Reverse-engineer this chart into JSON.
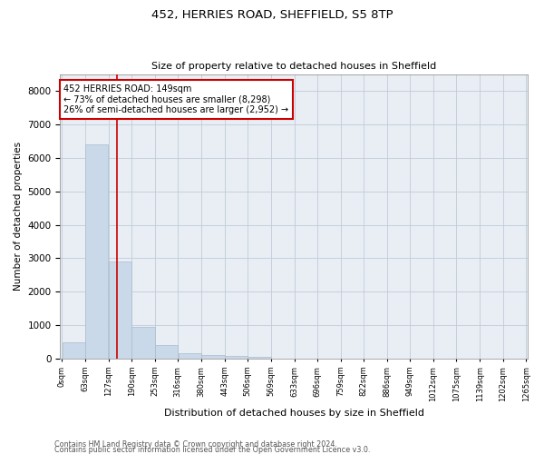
{
  "title1": "452, HERRIES ROAD, SHEFFIELD, S5 8TP",
  "title2": "Size of property relative to detached houses in Sheffield",
  "xlabel": "Distribution of detached houses by size in Sheffield",
  "ylabel": "Number of detached properties",
  "bar_values": [
    500,
    6400,
    2900,
    950,
    400,
    150,
    120,
    80,
    60,
    10,
    5,
    3,
    2,
    1,
    1,
    0,
    0,
    0,
    0,
    0
  ],
  "bin_edges": [
    0,
    63,
    127,
    190,
    253,
    316,
    380,
    443,
    506,
    569,
    633,
    696,
    759,
    822,
    886,
    949,
    1012,
    1075,
    1139,
    1202,
    1265
  ],
  "bar_color": "#c9d9e9",
  "bar_edgecolor": "#aabccc",
  "vline_x": 149,
  "vline_color": "#cc0000",
  "annotation_title": "452 HERRIES ROAD: 149sqm",
  "annotation_line1": "← 73% of detached houses are smaller (8,298)",
  "annotation_line2": "26% of semi-detached houses are larger (2,952) →",
  "annotation_box_edgecolor": "#cc0000",
  "ylim": [
    0,
    8500
  ],
  "yticks": [
    0,
    1000,
    2000,
    3000,
    4000,
    5000,
    6000,
    7000,
    8000
  ],
  "grid_color": "#c0ccd8",
  "background_color": "#e8eef4",
  "footer1": "Contains HM Land Registry data © Crown copyright and database right 2024.",
  "footer2": "Contains public sector information licensed under the Open Government Licence v3.0."
}
